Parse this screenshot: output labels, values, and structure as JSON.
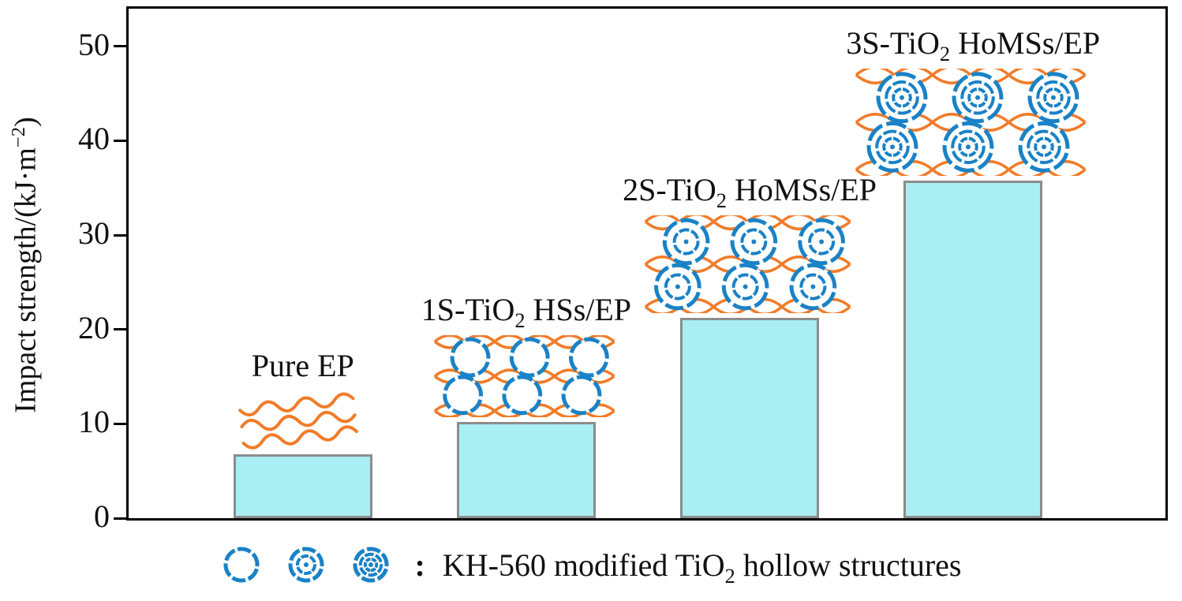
{
  "chart_data": {
    "type": "bar",
    "title": "",
    "ylabel": {
      "pre": "Impact strength/(kJ·m",
      "sup": "−2",
      "post": ")"
    },
    "ylim": [
      0,
      54
    ],
    "yticks": [
      0,
      10,
      20,
      30,
      40,
      50
    ],
    "grid": false,
    "legend_position": "bottom",
    "categories": [
      {
        "label_pre": "Pure EP",
        "label_sub": "",
        "label_post": "",
        "shells": 0
      },
      {
        "label_pre": "1S-TiO",
        "label_sub": "2",
        "label_post": " HSs/EP",
        "shells": 1
      },
      {
        "label_pre": "2S-TiO",
        "label_sub": "2",
        "label_post": " HoMSs/EP",
        "shells": 2
      },
      {
        "label_pre": "3S-TiO",
        "label_sub": "2",
        "label_post": " HoMSs/EP",
        "shells": 3
      }
    ],
    "values": [
      6.8,
      10.2,
      21.2,
      35.8
    ],
    "bar_fill": "#a8eef2",
    "bar_border": "#8c8c8c"
  },
  "legend": {
    "icons": [
      {
        "name": "single-shell-icon",
        "shells": 1
      },
      {
        "name": "double-shell-icon",
        "shells": 2
      },
      {
        "name": "triple-shell-icon",
        "shells": 3
      }
    ],
    "colon": ":",
    "text_pre": "KH-560 modified TiO",
    "text_sub": "2",
    "text_post": " hollow structures"
  },
  "colors": {
    "blue": "#1a82c6",
    "orange": "#f07c2a",
    "axis": "#000000",
    "background": "#ffffff"
  }
}
